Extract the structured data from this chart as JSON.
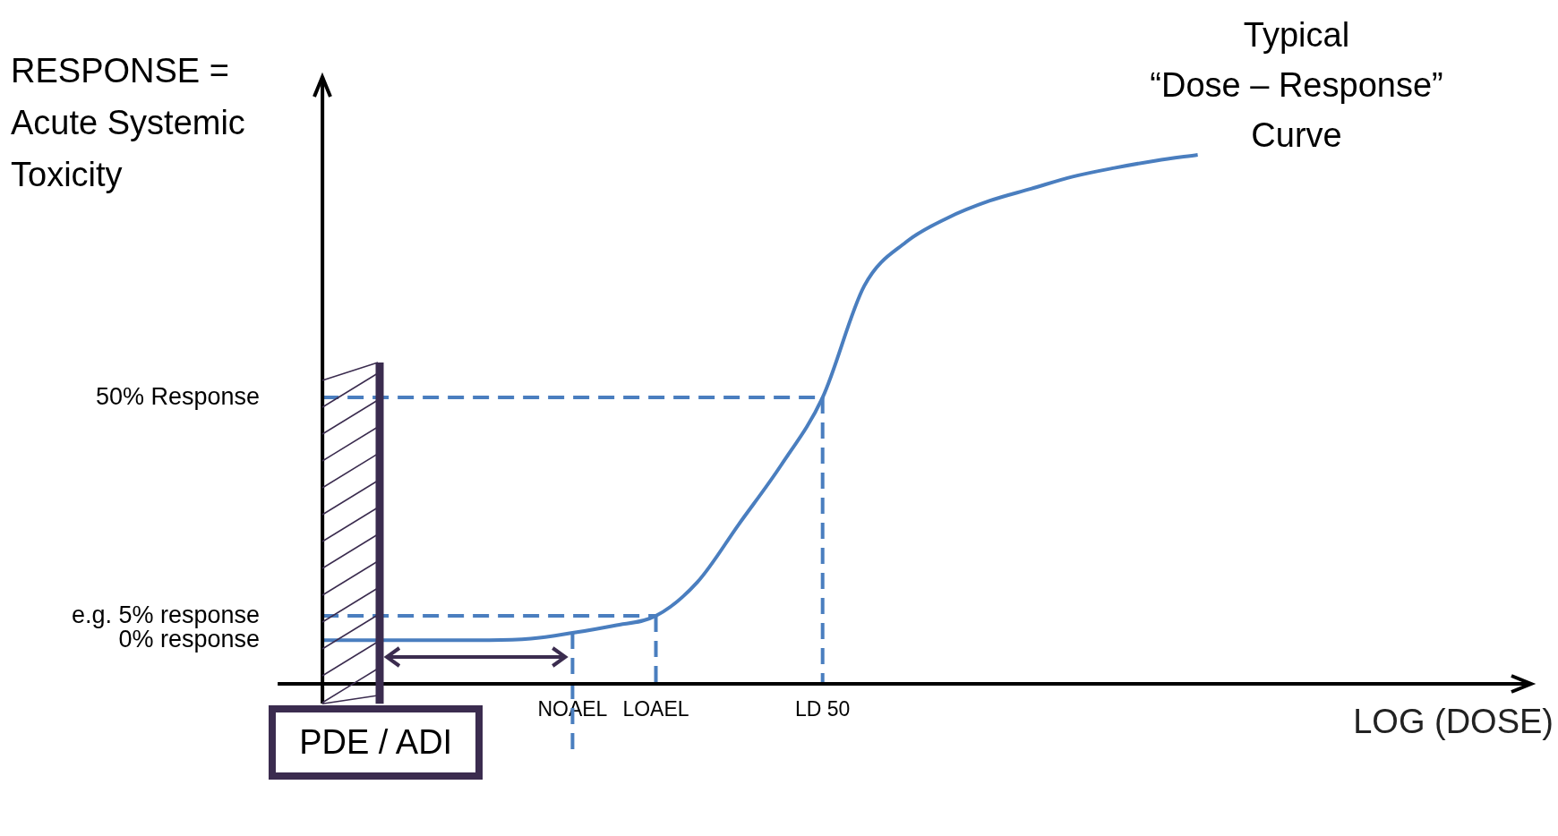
{
  "chart_data": {
    "type": "line",
    "title": "Typical “Dose – Response” Curve",
    "xlabel": "LOG (DOSE)",
    "ylabel": "RESPONSE = Acute Systemic Toxicity",
    "categories": [
      null,
      null,
      null,
      null,
      null,
      null,
      "NOAEL",
      null,
      "LOAEL",
      null,
      null,
      null,
      "LD 50",
      null,
      null,
      null,
      null,
      null,
      null,
      null,
      null,
      null,
      null,
      null,
      null,
      null,
      null,
      null,
      null,
      null
    ],
    "series": [
      {
        "color": "#4a7ebf",
        "values": [
          0,
          0,
          0,
          0,
          0,
          0.3,
          1.5,
          3,
          5,
          12,
          24,
          36,
          50,
          73,
          82,
          87,
          90.5,
          93,
          95.5,
          97.3,
          98.8,
          100,
          null,
          null,
          null,
          null,
          null,
          null,
          null,
          null
        ]
      }
    ],
    "ylim": [
      -9,
      116
    ],
    "yticks": [
      {
        "value": 0,
        "label": "0% response"
      },
      {
        "value": 5,
        "label": "e.g. 5% response"
      },
      {
        "value": 50,
        "label": "50% Response"
      }
    ],
    "ref_lines": [
      {
        "axis": "y",
        "value": 50,
        "color": "#4a7ebf",
        "line_style": "dashed"
      },
      {
        "axis": "y",
        "value": 5,
        "color": "#4a7ebf",
        "line_style": "dashed"
      },
      {
        "axis": "x",
        "value": "NOAEL",
        "color": "#4a7ebf",
        "line_style": "dashed"
      },
      {
        "axis": "x",
        "value": "LOAEL",
        "color": "#4a7ebf",
        "line_style": "dashed"
      },
      {
        "axis": "x",
        "value": "LD 50",
        "color": "#4a7ebf",
        "line_style": "dashed"
      }
    ],
    "annotations": [
      "PDE / ADI"
    ],
    "grid": false,
    "legend": false,
    "marker": "none",
    "line_style": "solid"
  }
}
